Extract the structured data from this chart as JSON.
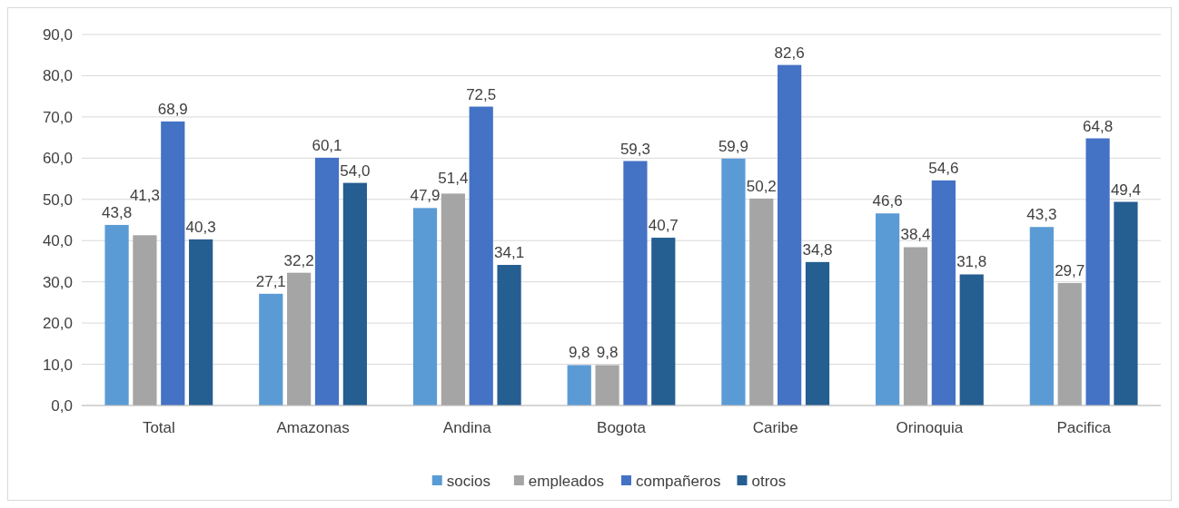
{
  "chart_data": {
    "type": "bar",
    "categories": [
      "Total",
      "Amazonas",
      "Andina",
      "Bogota",
      "Caribe",
      "Orinoquia",
      "Pacifica"
    ],
    "series": [
      {
        "name": "socios",
        "color": "#5b9bd5",
        "values": [
          43.8,
          27.1,
          47.9,
          9.8,
          59.9,
          46.6,
          43.3
        ],
        "value_labels": [
          "43,8",
          "27,1",
          "47,9",
          "9,8",
          "59,9",
          "46,6",
          "43,3"
        ]
      },
      {
        "name": "empleados",
        "color": "#a5a5a5",
        "values": [
          41.3,
          32.2,
          51.4,
          9.8,
          50.2,
          38.4,
          29.7
        ],
        "value_labels": [
          "41,3",
          "32,2",
          "51,4",
          "9,8",
          "50,2",
          "38,4",
          "29,7"
        ]
      },
      {
        "name": "compañeros",
        "color": "#4472c4",
        "values": [
          68.9,
          60.1,
          72.5,
          59.3,
          82.6,
          54.6,
          64.8
        ],
        "value_labels": [
          "68,9",
          "60,1",
          "72,5",
          "59,3",
          "82,6",
          "54,6",
          "64,8"
        ]
      },
      {
        "name": "otros",
        "color": "#255e91",
        "values": [
          40.3,
          54.0,
          34.1,
          40.7,
          34.8,
          31.8,
          49.4
        ],
        "value_labels": [
          "40,3",
          "54,0",
          "34,1",
          "40,7",
          "34,8",
          "31,8",
          "49,4"
        ]
      }
    ],
    "ylim": [
      0,
      90
    ],
    "yticks": [
      {
        "value": 0,
        "label": "0,0"
      },
      {
        "value": 10,
        "label": "10,0"
      },
      {
        "value": 20,
        "label": "20,0"
      },
      {
        "value": 30,
        "label": "30,0"
      },
      {
        "value": 40,
        "label": "40,0"
      },
      {
        "value": 50,
        "label": "50,0"
      },
      {
        "value": 60,
        "label": "60,0"
      },
      {
        "value": 70,
        "label": "70,0"
      },
      {
        "value": 80,
        "label": "80,0"
      },
      {
        "value": 90,
        "label": "90,0"
      }
    ],
    "grid": "y",
    "legend": "bottom"
  }
}
